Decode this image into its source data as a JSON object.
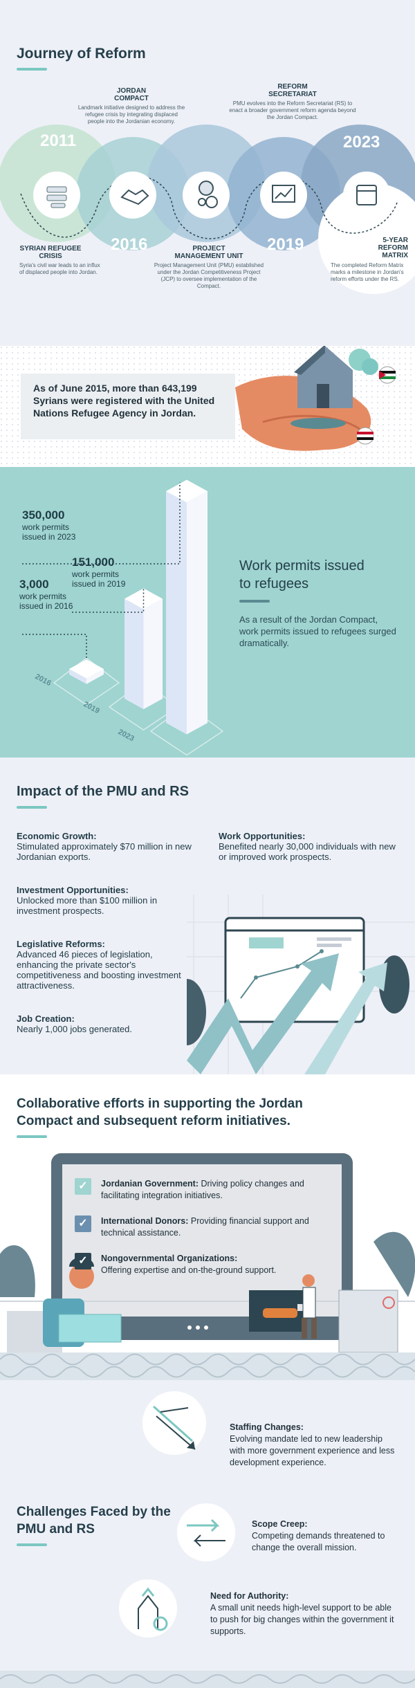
{
  "journey": {
    "title": "Journey of Reform",
    "years": [
      "2011",
      "2016",
      "2019",
      "2023"
    ],
    "items": [
      {
        "title": "SYRIAN REFUGEE CRISIS",
        "desc": "Syria's civil war leads to an influx of displaced people into Jordan."
      },
      {
        "title": "JORDAN COMPACT",
        "desc": "Landmark initiative designed to address the refugee crisis by integrating displaced people into the Jordanian economy."
      },
      {
        "title": "PROJECT MANAGEMENT UNIT",
        "desc": "Project Management Unit (PMU) established under the Jordan Competitiveness Project (JCP) to oversee implementation of the Compact."
      },
      {
        "title": "REFORM SECRETARIAT",
        "desc": "PMU evolves into the Reform Secretariat (RS) to enact a broader government reform agenda beyond the Jordan Compact."
      },
      {
        "title": "5-YEAR REFORM MATRIX",
        "desc": "The completed Reform Matrix marks a milestone in Jordan's reform efforts under the RS."
      }
    ]
  },
  "refugee": {
    "statement": "As of June 2015, more than 643,199 Syrians were registered with the United Nations Refugee Agency in Jordan."
  },
  "permits": {
    "title": "Work permits issued to refugees",
    "desc": "As a result of the Jordan Compact, work permits issued to refugees surged dramatically.",
    "chart_data": {
      "type": "bar",
      "categories": [
        "2016",
        "2019",
        "2023"
      ],
      "values": [
        3000,
        151000,
        350000
      ],
      "labels": [
        {
          "value": "3,000",
          "text": "work permits issued in 2016"
        },
        {
          "value": "151,000",
          "text": "work permits issued in 2019"
        },
        {
          "value": "350,000",
          "text": "work permits issued in 2023"
        }
      ]
    }
  },
  "impact": {
    "title": "Impact of the PMU and RS",
    "items": [
      {
        "title": "Economic Growth:",
        "desc": "Stimulated approximately $70 million in new Jordanian exports."
      },
      {
        "title": "Work Opportunities:",
        "desc": "Benefited nearly 30,000 individuals with new or improved work prospects."
      },
      {
        "title": "Investment Opportunities:",
        "desc": "Unlocked more than $100 million in investment prospects."
      },
      {
        "title": "Legislative Reforms:",
        "desc": "Advanced 46 pieces of legislation, enhancing the private sector's competitiveness and boosting investment attractiveness."
      },
      {
        "title": "Job Creation:",
        "desc": "Nearly 1,000 jobs generated."
      }
    ]
  },
  "collab": {
    "title": "Collaborative efforts in supporting the Jordan Compact and subsequent reform initiatives.",
    "items": [
      {
        "title": "Jordanian Government:",
        "desc": "Driving policy changes and facilitating integration initiatives."
      },
      {
        "title": "International Donors:",
        "desc": "Providing financial support and technical assistance."
      },
      {
        "title": "Nongovernmental Organizations:",
        "desc": "Offering expertise and on-the-ground support."
      }
    ]
  },
  "challenges": {
    "title": "Challenges Faced by the PMU and RS",
    "items": [
      {
        "title": "Staffing Changes:",
        "desc": "Evolving mandate led to new leadership with more government experience and less development experience."
      },
      {
        "title": "Scope Creep:",
        "desc": "Competing demands threatened to change the overall mission."
      },
      {
        "title": "Need for Authority:",
        "desc": "A small unit needs high-level support to be able to push for big changes within the government it supports."
      }
    ]
  },
  "colors": {
    "teal": "#9fd4d0",
    "navy": "#253f4b",
    "accent": "#7cc7c2",
    "dark_teal": "#5a8a91"
  }
}
